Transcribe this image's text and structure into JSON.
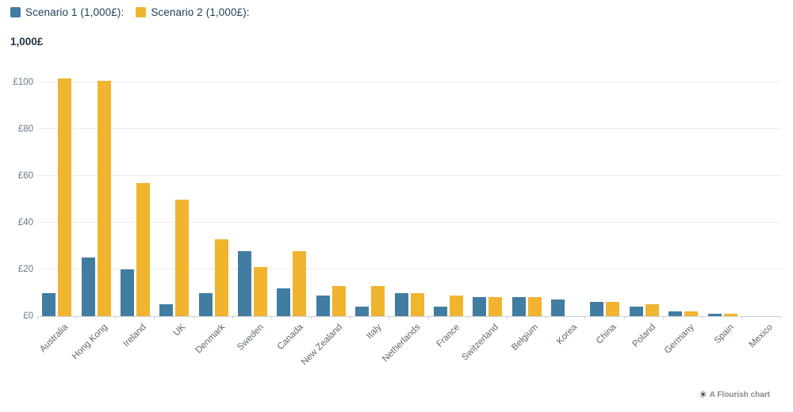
{
  "legend": {
    "items": [
      {
        "label": "Scenario 1 (1,000£):",
        "color": "#417da0"
      },
      {
        "label": "Scenario 2 (1,000£):",
        "color": "#f0b42f"
      }
    ]
  },
  "y_axis_title": "1,000£",
  "footer": {
    "icon": "flourish-asterisk",
    "icon_glyph": "✳",
    "credit": "A Flourish chart"
  },
  "colors": {
    "scenario1": "#417da0",
    "scenario2": "#f0b42f",
    "gridline": "#ebedee",
    "axis_line": "#ccd2d5",
    "tick_text": "#64798a",
    "category_text": "#5b6770",
    "legend_text": "#1d3d54"
  },
  "chart_data": {
    "type": "bar",
    "title": "",
    "ylabel": "1,000£",
    "xlabel": "",
    "ylim": [
      0,
      110
    ],
    "grid": true,
    "legend_position": "top-left",
    "categories": [
      "Australia",
      "Hong Kong",
      "Ireland",
      "UK",
      "Denmark",
      "Sweden",
      "Canada",
      "New Zealand",
      "Italy",
      "Netherlands",
      "France",
      "Switzerland",
      "Belgium",
      "Korea",
      "China",
      "Poland",
      "Germany",
      "Spain",
      "Mexico"
    ],
    "series": [
      {
        "name": "Scenario 1 (1,000£)",
        "color": "#417da0",
        "values": [
          10,
          25,
          20,
          5,
          10,
          28,
          12,
          9,
          4,
          10,
          4,
          8,
          8,
          7,
          6,
          4,
          2,
          1,
          0
        ]
      },
      {
        "name": "Scenario 2 (1,000£)",
        "color": "#f0b42f",
        "values": [
          102,
          101,
          57,
          50,
          33,
          21,
          28,
          13,
          13,
          10,
          9,
          8,
          8,
          0,
          6,
          5,
          2,
          1,
          0
        ]
      }
    ],
    "y_ticks": [
      {
        "label": "£0",
        "value": 0
      },
      {
        "label": "£20",
        "value": 20
      },
      {
        "label": "£40",
        "value": 40
      },
      {
        "label": "£60",
        "value": 60
      },
      {
        "label": "£80",
        "value": 80
      },
      {
        "label": "£100",
        "value": 100
      }
    ]
  }
}
